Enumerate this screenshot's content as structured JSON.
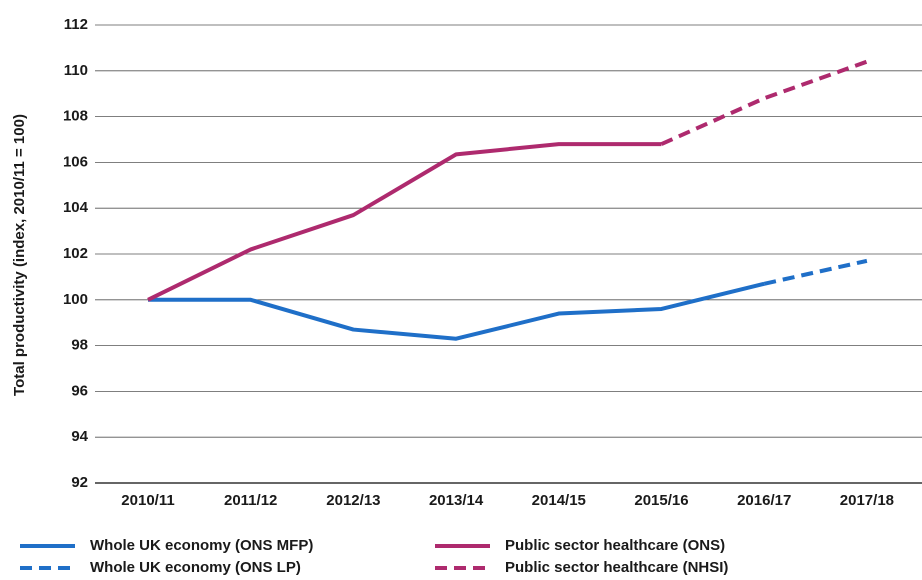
{
  "chart_data": {
    "type": "line",
    "y_label": "Total productivity (index, 2010/11 = 100)",
    "categories": [
      "2010/11",
      "2011/12",
      "2012/13",
      "2013/14",
      "2014/15",
      "2015/16",
      "2016/17",
      "2017/18"
    ],
    "series": [
      {
        "name": "Whole UK economy (ONS MFP)",
        "color": "#1f6fc8",
        "dashed": false,
        "values": [
          100,
          100,
          98.7,
          98.3,
          99.4,
          99.6,
          100.7,
          null
        ]
      },
      {
        "name": "Public sector healthcare (ONS)",
        "color": "#ae2a6e",
        "dashed": false,
        "values": [
          100,
          102.2,
          103.7,
          106.35,
          106.8,
          106.8,
          null,
          null
        ]
      },
      {
        "name": "Whole UK economy (ONS LP)",
        "color": "#1f6fc8",
        "dashed": true,
        "values": [
          null,
          null,
          null,
          null,
          null,
          null,
          100.7,
          101.7
        ]
      },
      {
        "name": "Public sector healthcare (NHSI)",
        "color": "#ae2a6e",
        "dashed": true,
        "values": [
          null,
          null,
          null,
          null,
          null,
          106.8,
          108.8,
          110.4
        ]
      }
    ],
    "ylim": [
      92,
      112
    ],
    "yticks": [
      92,
      94,
      96,
      98,
      100,
      102,
      104,
      106,
      108,
      110,
      112
    ],
    "grid": true
  }
}
